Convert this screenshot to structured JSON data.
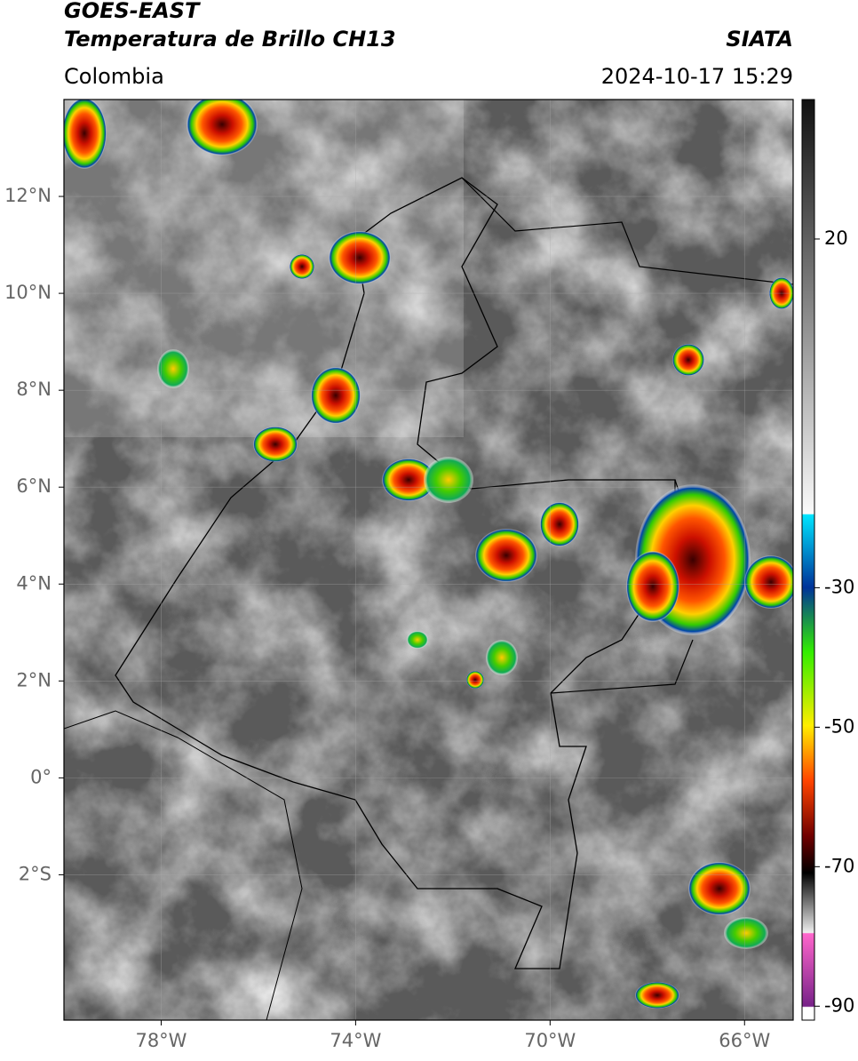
{
  "header": {
    "title": "GOES-EAST",
    "subtitle": "Temperatura de Brillo CH13",
    "source": "SIATA",
    "region": "Colombia",
    "datetime": "2024-10-17 15:29"
  },
  "map": {
    "lonlim": [
      -80,
      -65
    ],
    "latlim": [
      -5,
      14
    ],
    "lon_ticks": [
      {
        "value": -78,
        "label": "78°W"
      },
      {
        "value": -74,
        "label": "74°W"
      },
      {
        "value": -70,
        "label": "70°W"
      },
      {
        "value": -66,
        "label": "66°W"
      }
    ],
    "lat_ticks": [
      {
        "value": 12,
        "label": "12°N"
      },
      {
        "value": 10,
        "label": "10°N"
      },
      {
        "value": 8,
        "label": "8°N"
      },
      {
        "value": 6,
        "label": "6°N"
      },
      {
        "value": 4,
        "label": "4°N"
      },
      {
        "value": 2,
        "label": "2°N"
      },
      {
        "value": 0,
        "label": "0°"
      },
      {
        "value": -2,
        "label": "2°S"
      }
    ]
  },
  "colorbar": {
    "lim": [
      -92,
      40
    ],
    "ticks": [
      20,
      -30,
      -50,
      -70,
      -90
    ]
  }
}
